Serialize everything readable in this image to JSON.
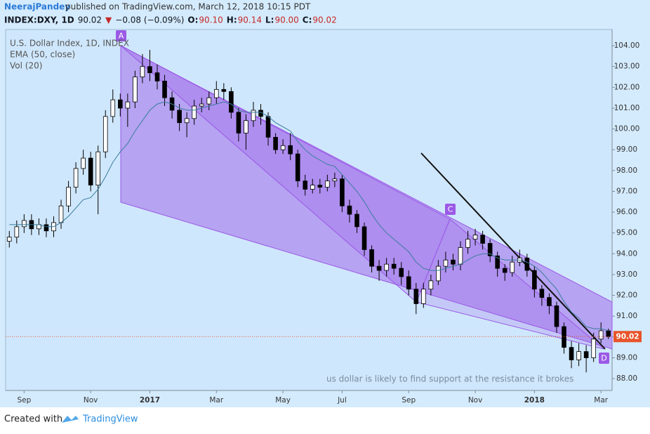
{
  "header": {
    "author": "NeerajPandey",
    "published": "published on TradingView.com, March 12, 2018 10:15 PDT",
    "quote": [
      {
        "text": "INDEX:DXY, 1D",
        "color": "#131722",
        "bold": true
      },
      {
        "text": "90.02",
        "color": "#131722",
        "bold": false
      },
      {
        "text": "▼",
        "color": "#c62828",
        "bold": false
      },
      {
        "text": "−0.08 (−0.09%)",
        "color": "#131722",
        "bold": false
      },
      {
        "text": "O:",
        "color": "#131722",
        "bold": true
      },
      {
        "text": "90.10",
        "color": "#c62828",
        "bold": false
      },
      {
        "text": "H:",
        "color": "#131722",
        "bold": true
      },
      {
        "text": "90.14",
        "color": "#c62828",
        "bold": false
      },
      {
        "text": "L:",
        "color": "#131722",
        "bold": true
      },
      {
        "text": "90.00",
        "color": "#c62828",
        "bold": false
      },
      {
        "text": "C:",
        "color": "#131722",
        "bold": true
      },
      {
        "text": "90.02",
        "color": "#c62828",
        "bold": false
      }
    ]
  },
  "chart_data": {
    "type": "candlestick",
    "name": "U.S. Dollar Index, 1D, INDEX",
    "volume_name": "Vol (20)",
    "categories": [
      null,
      null,
      "Sep",
      null,
      null,
      null,
      null,
      null,
      null,
      null,
      null,
      "Nov",
      null,
      null,
      null,
      null,
      null,
      null,
      null,
      "2017",
      null,
      null,
      null,
      null,
      null,
      null,
      null,
      null,
      "Mar",
      null,
      null,
      null,
      null,
      null,
      null,
      null,
      null,
      "May",
      null,
      null,
      null,
      null,
      null,
      null,
      null,
      "Jul",
      null,
      null,
      null,
      null,
      null,
      null,
      null,
      null,
      "Sep",
      null,
      null,
      null,
      null,
      null,
      null,
      null,
      null,
      "Nov",
      null,
      null,
      null,
      null,
      null,
      null,
      null,
      "2018",
      null,
      null,
      null,
      null,
      null,
      null,
      null,
      null,
      "Mar",
      null
    ],
    "open": [
      94.6,
      94.8,
      95.3,
      95.6,
      95.2,
      95.4,
      95.1,
      95.5,
      96.3,
      97.2,
      98.1,
      98.6,
      97.3,
      98.9,
      100.6,
      101.4,
      101.0,
      101.3,
      102.5,
      103.0,
      102.7,
      102.3,
      101.5,
      100.9,
      100.3,
      100.5,
      101.1,
      101.2,
      101.5,
      101.9,
      101.8,
      100.8,
      99.8,
      100.4,
      100.9,
      100.6,
      99.6,
      99.0,
      99.2,
      98.8,
      97.5,
      97.1,
      97.3,
      97.2,
      97.5,
      97.6,
      96.3,
      95.9,
      95.3,
      94.2,
      93.4,
      93.2,
      93.5,
      93.3,
      92.9,
      92.3,
      91.6,
      92.3,
      92.7,
      93.4,
      93.7,
      93.5,
      94.3,
      94.7,
      94.9,
      94.5,
      93.9,
      93.3,
      93.1,
      93.6,
      93.8,
      93.2,
      92.3,
      91.9,
      91.5,
      90.5,
      89.5,
      88.9,
      89.3,
      89.0,
      89.9,
      90.3
    ],
    "high": [
      95.1,
      95.6,
      95.9,
      95.9,
      95.7,
      95.7,
      95.8,
      96.6,
      97.5,
      98.4,
      99.0,
      98.9,
      99.2,
      100.9,
      101.9,
      101.7,
      101.7,
      102.8,
      103.6,
      103.8,
      103.1,
      102.6,
      101.8,
      101.2,
      100.8,
      101.4,
      101.5,
      101.8,
      102.3,
      102.2,
      102.0,
      101.0,
      100.7,
      101.3,
      101.2,
      100.8,
      99.8,
      99.5,
      99.8,
      99.0,
      97.8,
      97.6,
      97.6,
      97.8,
      97.9,
      97.8,
      96.6,
      96.1,
      95.5,
      94.4,
      93.7,
      93.8,
      93.8,
      93.6,
      93.2,
      92.6,
      92.6,
      93.0,
      93.7,
      94.1,
      94.0,
      94.6,
      95.1,
      95.2,
      95.1,
      94.7,
      94.1,
      93.5,
      93.9,
      94.2,
      94.0,
      93.4,
      92.5,
      92.1,
      91.7,
      90.7,
      89.8,
      89.7,
      89.6,
      90.2,
      90.7,
      90.4
    ],
    "low": [
      94.3,
      94.5,
      95.0,
      94.9,
      94.9,
      94.8,
      94.8,
      95.2,
      96.0,
      96.9,
      97.8,
      97.0,
      95.9,
      98.6,
      100.3,
      100.6,
      100.1,
      101.0,
      102.2,
      102.3,
      101.9,
      101.1,
      100.5,
      99.9,
      99.6,
      100.2,
      100.8,
      100.9,
      101.2,
      101.4,
      100.5,
      99.4,
      99.0,
      100.1,
      100.2,
      99.2,
      98.8,
      98.8,
      98.5,
      97.2,
      96.8,
      96.9,
      96.9,
      97.0,
      97.2,
      96.0,
      95.5,
      95.0,
      93.9,
      93.1,
      92.7,
      92.9,
      93.0,
      92.5,
      92.0,
      91.1,
      91.4,
      92.0,
      92.5,
      93.1,
      93.2,
      93.2,
      94.0,
      94.4,
      94.2,
      93.6,
      92.9,
      92.7,
      92.9,
      93.4,
      92.9,
      91.9,
      91.5,
      91.1,
      90.2,
      89.2,
      88.5,
      88.6,
      88.3,
      88.8,
      89.7,
      89.9
    ],
    "close": [
      94.8,
      95.3,
      95.6,
      95.2,
      95.4,
      95.1,
      95.5,
      96.3,
      97.2,
      98.1,
      98.6,
      97.3,
      98.9,
      100.6,
      101.4,
      101.0,
      101.3,
      102.5,
      103.0,
      102.7,
      102.3,
      101.5,
      100.9,
      100.3,
      100.5,
      101.1,
      101.2,
      101.5,
      101.9,
      101.8,
      100.8,
      99.8,
      100.4,
      100.9,
      100.6,
      99.6,
      99.0,
      99.2,
      98.8,
      97.5,
      97.1,
      97.3,
      97.2,
      97.5,
      97.6,
      96.3,
      95.9,
      95.3,
      94.2,
      93.4,
      93.2,
      93.5,
      93.3,
      92.9,
      92.3,
      91.6,
      92.3,
      92.7,
      93.4,
      93.7,
      93.5,
      94.3,
      94.7,
      94.9,
      94.5,
      93.9,
      93.3,
      93.1,
      93.6,
      93.8,
      93.2,
      92.3,
      91.9,
      91.5,
      90.5,
      89.5,
      88.9,
      89.3,
      89.0,
      89.9,
      90.3,
      90.02
    ],
    "up_color": "#ffffff",
    "down_color": "#000000",
    "wick_color": "#000000",
    "ema": {
      "name": "EMA (50, close)",
      "color": "#3a7d9c",
      "values": [
        95.4,
        95.4,
        95.4,
        95.4,
        95.4,
        95.3,
        95.3,
        95.5,
        95.8,
        96.2,
        96.6,
        96.7,
        97.1,
        97.7,
        98.4,
        98.9,
        99.3,
        99.9,
        100.4,
        100.9,
        101.2,
        101.3,
        101.2,
        101.0,
        100.9,
        100.9,
        101.0,
        101.1,
        101.2,
        101.3,
        101.2,
        100.9,
        100.8,
        100.8,
        100.8,
        100.6,
        100.3,
        100.1,
        99.9,
        99.4,
        99.0,
        98.7,
        98.5,
        98.3,
        98.2,
        97.8,
        97.4,
        97.0,
        96.5,
        95.9,
        95.4,
        95.0,
        94.7,
        94.4,
        94.1,
        93.6,
        93.3,
        93.2,
        93.2,
        93.3,
        93.4,
        93.5,
        93.7,
        93.9,
        94.0,
        94.0,
        93.8,
        93.7,
        93.7,
        93.7,
        93.6,
        93.4,
        93.1,
        92.7,
        92.3,
        91.7,
        91.2,
        90.9,
        90.5,
        90.4,
        90.4,
        90.3
      ]
    },
    "price_label": "90.02",
    "price_label_color": "#e8542a",
    "ylim": [
      87.43,
      104.78
    ],
    "yticks": [
      {
        "value": 88,
        "label": "88.00"
      },
      {
        "value": 89,
        "label": "89.00"
      },
      {
        "value": 90,
        "label": "90.00"
      },
      {
        "value": 91,
        "label": "91.00"
      },
      {
        "value": 92,
        "label": "92.00"
      },
      {
        "value": 93,
        "label": "93.00"
      },
      {
        "value": 94,
        "label": "94.00"
      },
      {
        "value": 95,
        "label": "95.00"
      },
      {
        "value": 96,
        "label": "96.00"
      },
      {
        "value": 97,
        "label": "97.00"
      },
      {
        "value": 98,
        "label": "98.00"
      },
      {
        "value": 99,
        "label": "99.00"
      },
      {
        "value": 100,
        "label": "100.00"
      },
      {
        "value": 101,
        "label": "101.00"
      },
      {
        "value": 102,
        "label": "102.00"
      },
      {
        "value": 103,
        "label": "103.00"
      },
      {
        "value": 104,
        "label": "104.00"
      }
    ],
    "grid": false,
    "annotations": {
      "a": "A",
      "c": "C",
      "d": "D",
      "note": "us dollar is likely to find support at the resistance it brokes"
    }
  },
  "footer": {
    "created": "Created with",
    "brand": "TradingView"
  }
}
